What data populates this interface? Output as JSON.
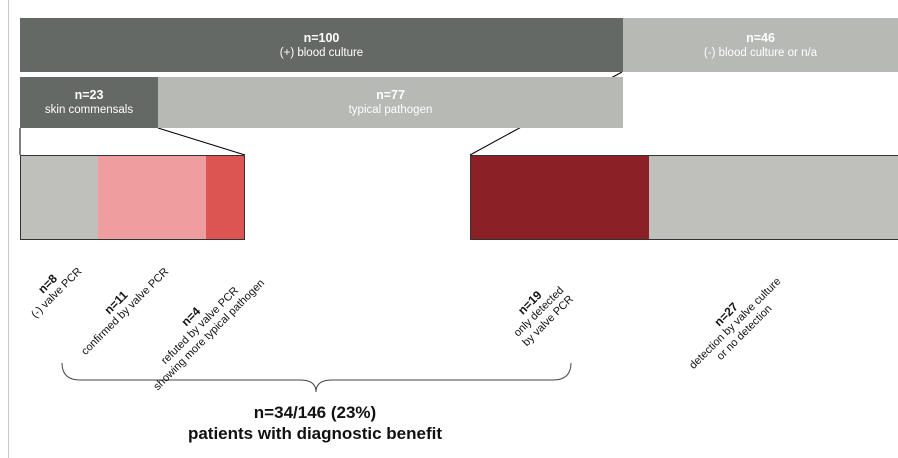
{
  "colors": {
    "dark_gray": "#646965",
    "light_gray": "#b7b9b5",
    "pink_light": "#ee9e9e",
    "red_medium": "#dd5553",
    "dark_red": "#8b2126",
    "bar_gray": "#bfbfbc"
  },
  "top_row": {
    "positive": {
      "count": "n=100",
      "label": "(+) blood culture"
    },
    "negative": {
      "count": "n=46",
      "label": "(-) blood culture or n/a"
    }
  },
  "second_row": {
    "commensals": {
      "count": "n=23",
      "label": "skin commensals"
    },
    "typical": {
      "count": "n=77",
      "label": "typical pathogen"
    }
  },
  "segments": [
    {
      "count": "n=8",
      "label_line1": "(-) valve PCR",
      "label_line2": ""
    },
    {
      "count": "n=11",
      "label_line1": "confirmed by valve PCR",
      "label_line2": ""
    },
    {
      "count": "n=4",
      "label_line1": "refuted by valve PCR",
      "label_line2": "showing more typical pathogen"
    },
    {
      "count": "n=19",
      "label_line1": "only detected",
      "label_line2": "by valve PCR"
    },
    {
      "count": "n=27",
      "label_line1": "detection by valve culture",
      "label_line2": "or no detection"
    }
  ],
  "summary": {
    "line1": "n=34/146 (23%)",
    "line2": "patients with diagnostic benefit"
  }
}
